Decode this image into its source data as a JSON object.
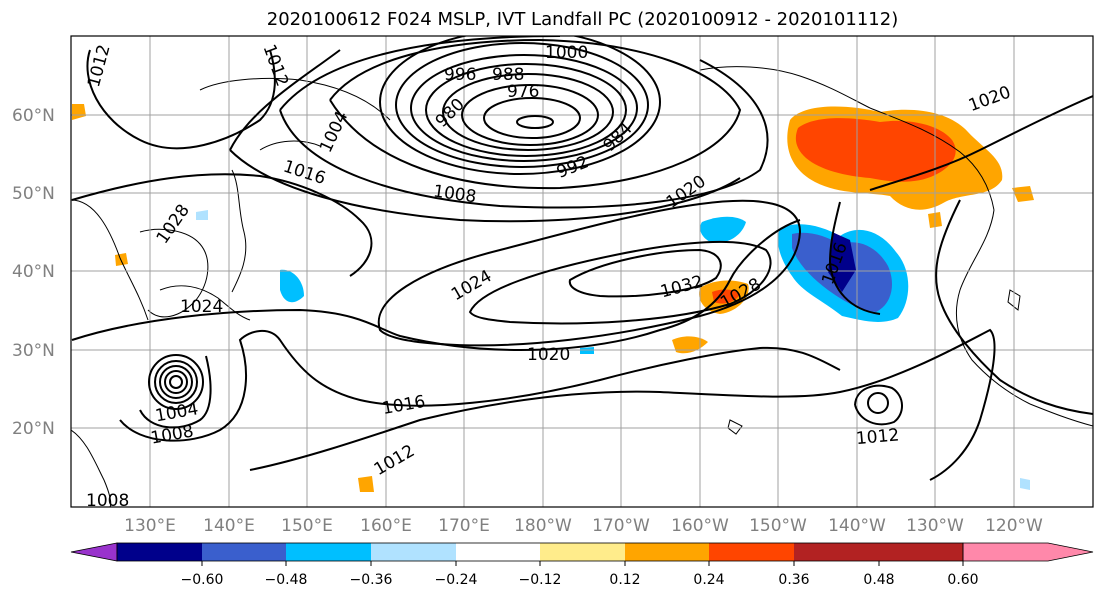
{
  "title": "2020100612 F024 MSLP, IVT Landfall PC (2020100912 - 2020101112)",
  "lat_labels": [
    "60°N",
    "50°N",
    "40°N",
    "30°N",
    "20°N"
  ],
  "lon_labels": [
    "130°E",
    "140°E",
    "150°E",
    "160°E",
    "170°E",
    "180°W",
    "170°W",
    "160°W",
    "150°W",
    "140°W",
    "130°W",
    "120°W"
  ],
  "isobar_labels": [
    "1000",
    "996",
    "988",
    "976",
    "980",
    "984",
    "992",
    "1004",
    "1012",
    "1012",
    "1016",
    "1008",
    "1020",
    "1020",
    "1024",
    "1032",
    "1028",
    "1016",
    "1028",
    "1024",
    "1020",
    "1016",
    "1004",
    "1008",
    "1012",
    "1012",
    "1008"
  ],
  "colorbar": {
    "colors": [
      "#9933cc",
      "#00008b",
      "#3a5fcd",
      "#00bfff",
      "#b0e2ff",
      "#ffffff",
      "#ffec8b",
      "#ffa500",
      "#ff4500",
      "#b22222",
      "#ff88aa"
    ],
    "ticks": [
      "−0.60",
      "−0.48",
      "−0.36",
      "−0.24",
      "−0.12",
      "0.12",
      "0.24",
      "0.36",
      "0.48",
      "0.60"
    ]
  }
}
